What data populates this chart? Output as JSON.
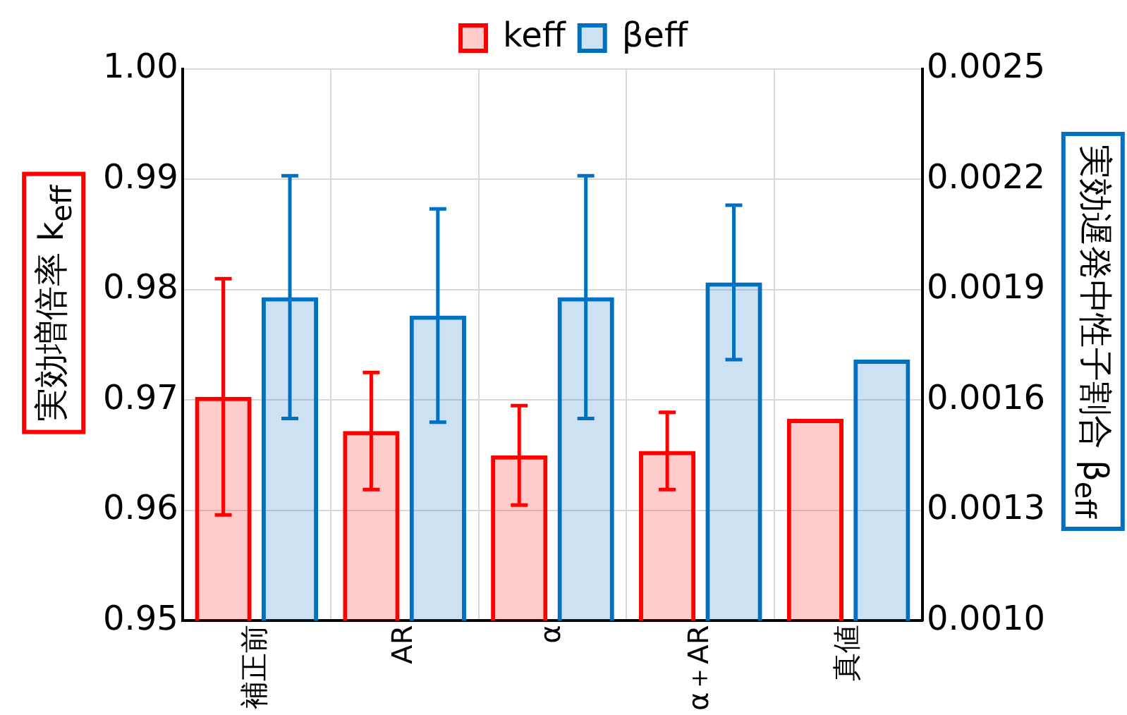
{
  "chart_data": {
    "type": "bar",
    "ylabel": "実効増倍率 k$_{eff}$",
    "y2label": "実効遅発中性子割合 β$_{eff}$",
    "categories": [
      "補正前",
      "AR",
      "α",
      "α＋AR",
      "真値"
    ],
    "series": [
      {
        "name": "keff",
        "color": "#ff0000",
        "values": [
          0.9703,
          0.9672,
          0.965,
          0.9654,
          0.9683
        ],
        "errors": [
          0.0107,
          0.0053,
          0.0045,
          0.0035,
          null
        ]
      },
      {
        "name": "βeff",
        "color": "#0070c0",
        "axis": "y2",
        "values": [
          0.00188,
          0.00183,
          0.00188,
          0.00192,
          0.00171
        ],
        "errors": [
          0.00033,
          0.00029,
          0.00033,
          0.00021,
          null
        ]
      }
    ],
    "ylim": [
      0.95,
      1.0
    ],
    "yticks": [
      0.95,
      0.96,
      0.97,
      0.98,
      0.99,
      {
        "value": 1.0,
        "label": "1.00"
      }
    ],
    "y2lim": [
      0.001,
      0.0025
    ],
    "y2ticks": [
      {
        "value": 0.001,
        "label": "0.0010"
      },
      {
        "value": 0.0013,
        "label": "0.0013"
      },
      {
        "value": 0.0016,
        "label": "0.0016"
      },
      {
        "value": 0.0019,
        "label": "0.0019"
      },
      {
        "value": 0.0022,
        "label": "0.0022"
      },
      {
        "value": 0.0025,
        "label": "0.0025"
      }
    ],
    "grid": true,
    "legend": "top"
  }
}
